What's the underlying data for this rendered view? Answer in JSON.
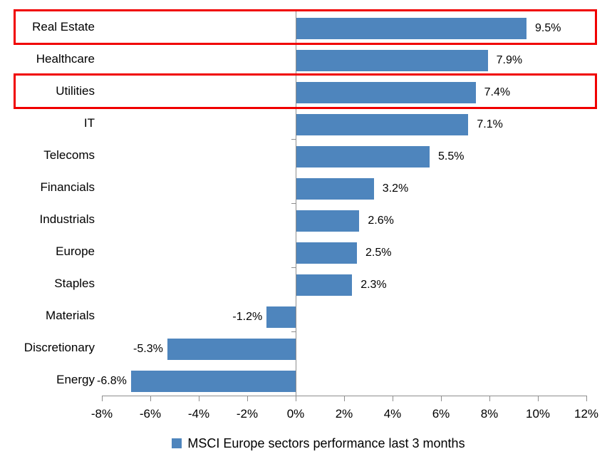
{
  "chart_data": {
    "type": "bar",
    "orientation": "horizontal",
    "title": "",
    "xlabel": "",
    "ylabel": "",
    "series_name": "MSCI Europe sectors performance last 3 months",
    "categories": [
      "Real Estate",
      "Healthcare",
      "Utilities",
      "IT",
      "Telecoms",
      "Financials",
      "Industrials",
      "Europe",
      "Staples",
      "Materials",
      "Discretionary",
      "Energy"
    ],
    "values": [
      9.5,
      7.9,
      7.4,
      7.1,
      5.5,
      3.2,
      2.6,
      2.5,
      2.3,
      -1.2,
      -5.3,
      -6.8
    ],
    "value_labels": [
      "9.5%",
      "7.9%",
      "7.4%",
      "7.1%",
      "5.5%",
      "3.2%",
      "2.6%",
      "2.5%",
      "2.3%",
      "-1.2%",
      "-5.3%",
      "-6.8%"
    ],
    "xlim": [
      -8,
      12
    ],
    "x_tick_values": [
      -8,
      -6,
      -4,
      -2,
      0,
      2,
      4,
      6,
      8,
      10,
      12
    ],
    "x_tick_labels": [
      "-8%",
      "-6%",
      "-4%",
      "-2%",
      "0%",
      "2%",
      "4%",
      "6%",
      "8%",
      "10%",
      "12%"
    ],
    "grid": false,
    "legend_position": "bottom",
    "highlighted_categories": [
      "Real Estate",
      "Utilities"
    ],
    "colors": {
      "bar": "#4e85bd",
      "axis": "#8e8e8e",
      "highlight": "#f00000",
      "text": "#000000"
    }
  }
}
